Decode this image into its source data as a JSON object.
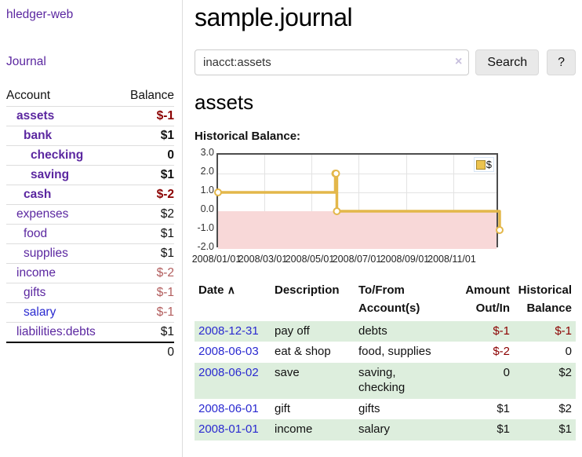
{
  "app": {
    "title": "hledger-web"
  },
  "sidebar": {
    "journal_label": "Journal",
    "headers": {
      "account": "Account",
      "balance": "Balance"
    },
    "accounts": [
      {
        "name": "assets",
        "balance": "$-1"
      },
      {
        "name": "bank",
        "balance": "$1"
      },
      {
        "name": "checking",
        "balance": "0"
      },
      {
        "name": "saving",
        "balance": "$1"
      },
      {
        "name": "cash",
        "balance": "$-2"
      },
      {
        "name": "expenses",
        "balance": "$2"
      },
      {
        "name": "food",
        "balance": "$1"
      },
      {
        "name": "supplies",
        "balance": "$1"
      },
      {
        "name": "income",
        "balance": "$-2"
      },
      {
        "name": "gifts",
        "balance": "$-1"
      },
      {
        "name": "salary",
        "balance": "$-1"
      },
      {
        "name": "liabilities:debts",
        "balance": "$1"
      }
    ],
    "total": "0"
  },
  "main": {
    "title": "sample.journal",
    "search": {
      "value": "inacct:assets",
      "clear_icon": "×",
      "search_button": "Search",
      "help_button": "?"
    },
    "heading": "assets",
    "chart_label": "Historical Balance:"
  },
  "chart_data": {
    "type": "line",
    "title": "Historical Balance:",
    "step": "hv",
    "series": [
      {
        "name": "$",
        "points": [
          [
            "2008-01-01",
            1
          ],
          [
            "2008-06-01",
            2
          ],
          [
            "2008-06-02",
            2
          ],
          [
            "2008-06-03",
            0
          ],
          [
            "2008-12-31",
            -1
          ]
        ]
      }
    ],
    "x_range": [
      "2008-01-01",
      "2008-12-31"
    ],
    "ylim": [
      -2,
      3
    ],
    "y_ticks": [
      3.0,
      2.0,
      1.0,
      0.0,
      -1.0,
      -2.0
    ],
    "x_ticks": [
      "2008/01/01",
      "2008/03/01",
      "2008/05/01",
      "2008/07/01",
      "2008/09/01",
      "2008/11/01"
    ],
    "legend": {
      "label": "$",
      "position": "top-right"
    },
    "grid": true,
    "line_color": "#e3b74a",
    "marker_fill": "#ffffff",
    "negative_fill": "#f8d8d8",
    "zero_line_color": "#990000"
  },
  "register": {
    "headers": {
      "date": "Date",
      "sort_icon": "∧",
      "description": "Description",
      "account": "To/From\nAccount(s)",
      "amount": "Amount\nOut/In",
      "balance": "Historical\nBalance"
    },
    "rows": [
      {
        "date": "2008-12-31",
        "description": "pay off",
        "accounts": "debts",
        "amount": "$-1",
        "balance": "$-1"
      },
      {
        "date": "2008-06-03",
        "description": "eat & shop",
        "accounts": "food, supplies",
        "amount": "$-2",
        "balance": "0"
      },
      {
        "date": "2008-06-02",
        "description": "save",
        "accounts": "saving,\nchecking",
        "amount": "0",
        "balance": "$2"
      },
      {
        "date": "2008-06-01",
        "description": "gift",
        "accounts": "gifts",
        "amount": "$1",
        "balance": "$2"
      },
      {
        "date": "2008-01-01",
        "description": "income",
        "accounts": "salary",
        "amount": "$1",
        "balance": "$1"
      }
    ]
  },
  "colors": {
    "link_purple": "#5b27a0",
    "link_blue": "#2a2ad0",
    "negative_strong": "#8b0000",
    "negative_soft": "#b25d5d",
    "row_green": "#ddeedd",
    "chart_line": "#e3b74a",
    "chart_negative_band": "#f8d8d8",
    "chart_zero_line": "#990000"
  }
}
